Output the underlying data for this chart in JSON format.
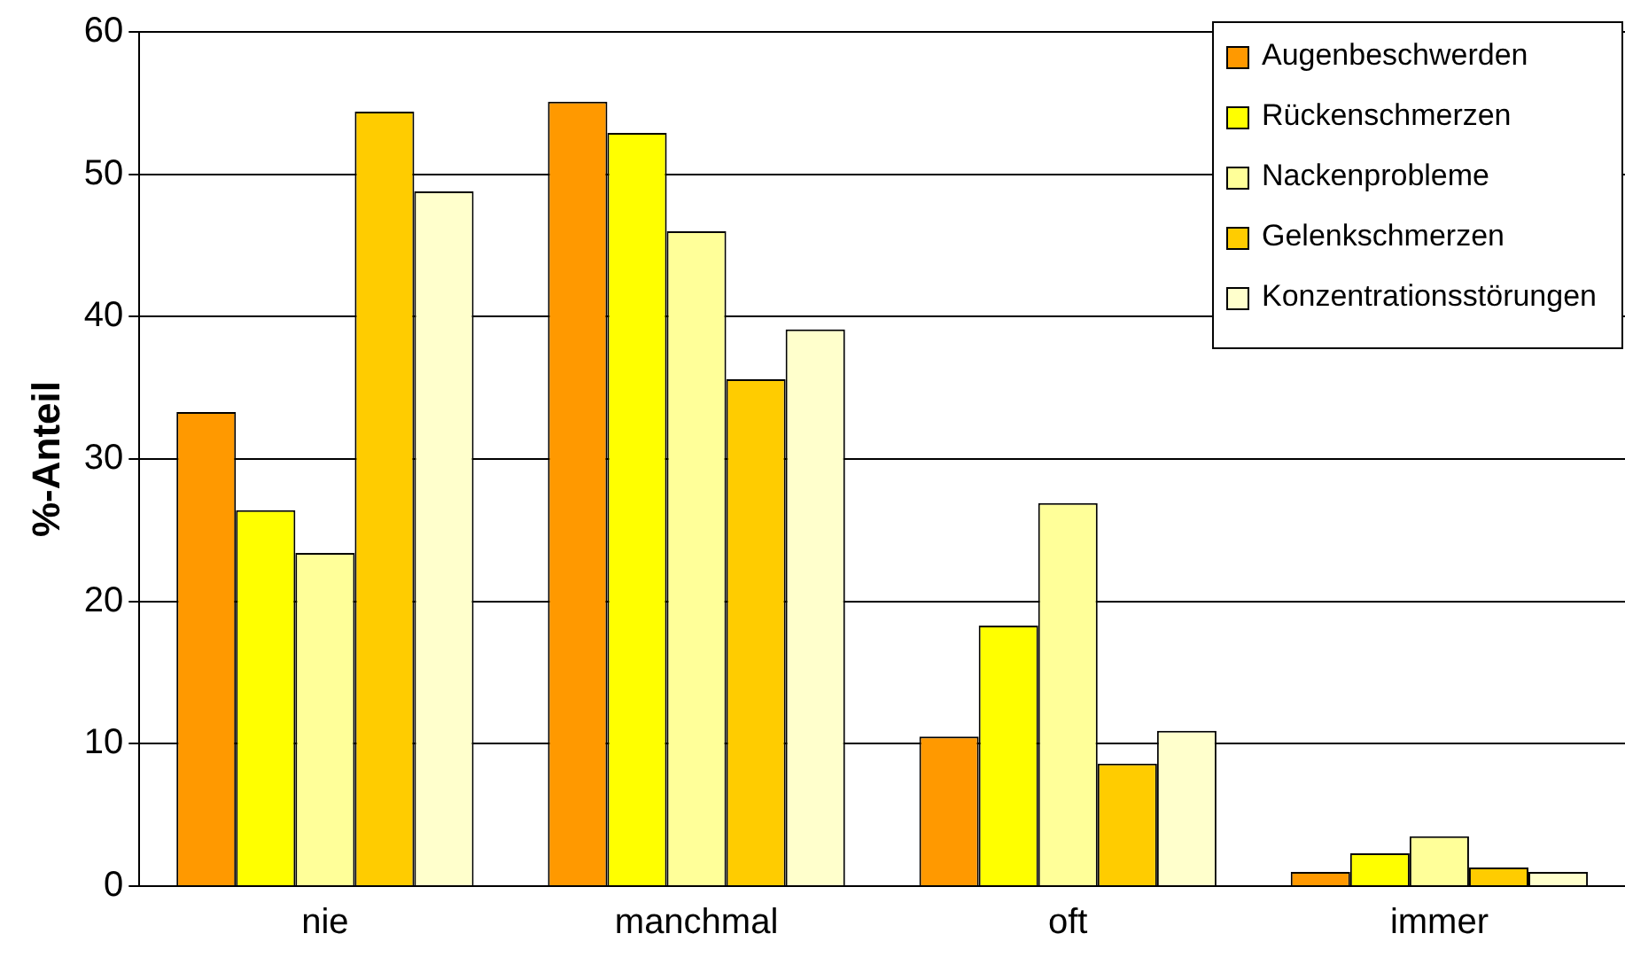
{
  "chart_data": {
    "type": "bar",
    "ylabel": "%-Anteil",
    "categories": [
      "nie",
      "manchmal",
      "oft",
      "immer"
    ],
    "series": [
      {
        "name": "Augenbeschwerden",
        "color": "#ff9900",
        "values": [
          33.3,
          55.1,
          10.5,
          1.0
        ]
      },
      {
        "name": "Rückenschmerzen",
        "color": "#ffff00",
        "values": [
          26.4,
          52.9,
          18.3,
          2.3
        ]
      },
      {
        "name": "Nackenprobleme",
        "color": "#ffff99",
        "values": [
          23.4,
          46.0,
          26.9,
          3.5
        ]
      },
      {
        "name": "Gelenkschmerzen",
        "color": "#ffcc00",
        "values": [
          54.4,
          35.6,
          8.6,
          1.3
        ]
      },
      {
        "name": "Konzentrationsstörungen",
        "color": "#ffffcc",
        "values": [
          48.8,
          39.1,
          10.9,
          1.0
        ]
      }
    ],
    "ylim": [
      0,
      60
    ],
    "yticks": [
      0,
      10,
      20,
      30,
      40,
      50,
      60
    ],
    "grid": "y",
    "legend": "top right"
  }
}
